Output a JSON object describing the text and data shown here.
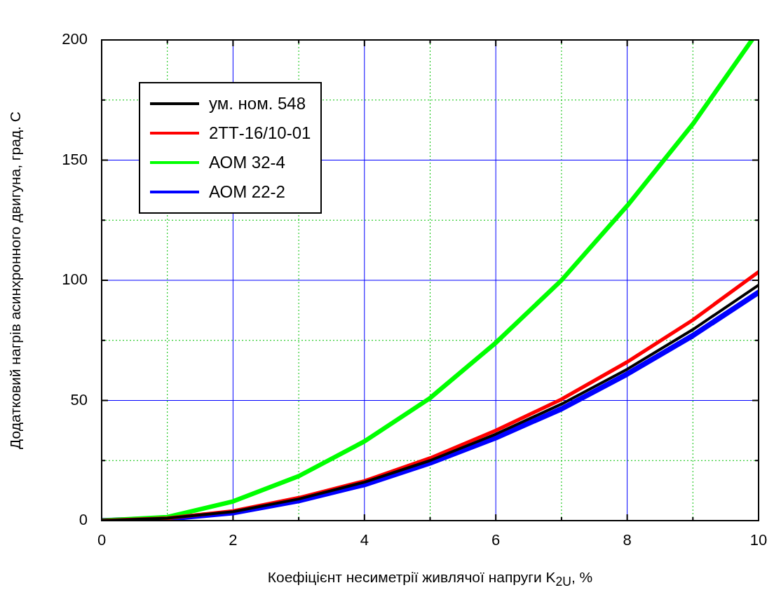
{
  "chart_data": {
    "type": "line",
    "xlabel": "Коефіцієнт несиметрії живлячої напруги K$_{2U}$, %",
    "ylabel": "Додатковий нагрів асинхронного двигуна, град. С",
    "x": [
      0,
      1,
      2,
      3,
      4,
      5,
      6,
      7,
      8,
      9,
      10
    ],
    "series": [
      {
        "name": "ум. ном. 548",
        "color": "#000000",
        "values": [
          0,
          1,
          3.7,
          9,
          16,
          25,
          36,
          48.5,
          63,
          79.5,
          98
        ]
      },
      {
        "name": "2ТТ-16/10-01",
        "color": "#ff0000",
        "values": [
          0,
          1,
          4,
          9.5,
          16.5,
          26,
          37.5,
          50.5,
          66,
          83.5,
          103.5
        ]
      },
      {
        "name": "АОМ 32-4",
        "color": "#00ff00",
        "x": [
          0,
          1,
          2,
          3,
          4,
          5,
          6,
          7,
          8,
          9,
          9.9
        ],
        "values": [
          0,
          1.5,
          8,
          18.5,
          33,
          51,
          74,
          100,
          131,
          165,
          200
        ]
      },
      {
        "name": "АОМ 22-2",
        "color": "#0000ff",
        "values": [
          0,
          0.8,
          3.3,
          8.3,
          15,
          24,
          34.5,
          46.5,
          61,
          77,
          95
        ]
      }
    ],
    "xlim": [
      0,
      10
    ],
    "xticks": [
      0,
      {
        "value": 1,
        "label": null
      },
      2,
      {
        "value": 3,
        "label": null
      },
      4,
      {
        "value": 5,
        "label": null
      },
      6,
      {
        "value": 7,
        "label": null
      },
      8,
      {
        "value": 9,
        "label": null
      },
      10
    ],
    "ylim": [
      0,
      200
    ],
    "yticks": [
      0,
      {
        "value": 25,
        "label": null
      },
      50,
      {
        "value": 75,
        "label": null
      },
      100,
      {
        "value": 125,
        "label": null
      },
      150,
      {
        "value": 175,
        "label": null
      },
      200
    ],
    "grid": true,
    "legend": "top left",
    "marker": "none",
    "line_style": "solid"
  }
}
